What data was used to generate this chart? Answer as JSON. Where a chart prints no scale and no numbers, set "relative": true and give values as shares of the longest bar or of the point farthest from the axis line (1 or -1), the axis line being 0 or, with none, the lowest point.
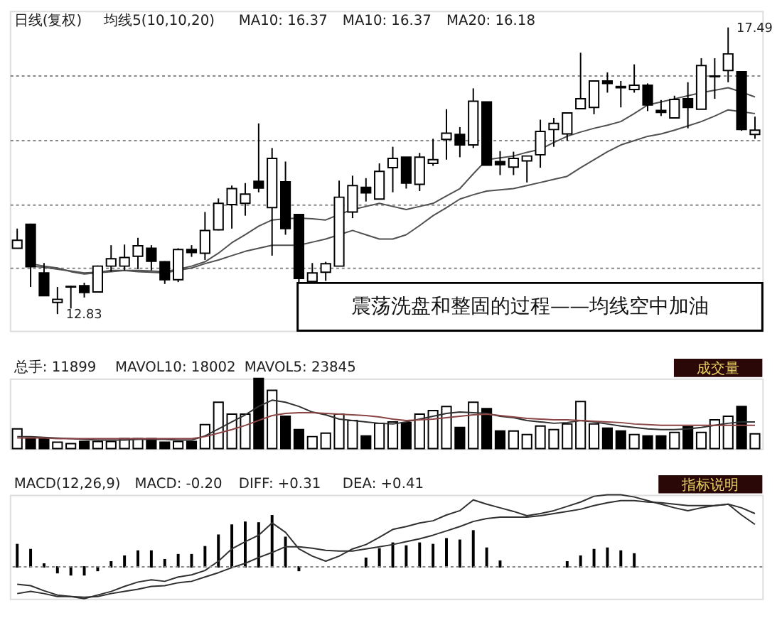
{
  "chart_data": [
    {
      "type": "candlestick",
      "categories": [
        null,
        null,
        null,
        null,
        null,
        null,
        null,
        null,
        null,
        null,
        null,
        null,
        null,
        null,
        null,
        null,
        null,
        null,
        null,
        null,
        null,
        null,
        null,
        null,
        null,
        null,
        null,
        null,
        null,
        null,
        null,
        null,
        null,
        null,
        null,
        null,
        null,
        null,
        null,
        null,
        null,
        null,
        null,
        null,
        null,
        null,
        null,
        null,
        null,
        null,
        null,
        null,
        null,
        null,
        null,
        null
      ],
      "ohlc": [
        [
          13.9,
          14.22,
          13.9,
          14.03
        ],
        [
          14.29,
          14.3,
          13.27,
          13.6
        ],
        [
          13.5,
          13.66,
          13.13,
          13.13
        ],
        [
          13.02,
          13.27,
          12.83,
          13.07
        ],
        [
          13.27,
          13.29,
          12.92,
          13.28
        ],
        [
          13.29,
          13.34,
          13.1,
          13.18
        ],
        [
          13.19,
          13.62,
          13.19,
          13.61
        ],
        [
          13.61,
          13.95,
          13.52,
          13.73
        ],
        [
          13.61,
          13.96,
          13.54,
          13.75
        ],
        [
          13.77,
          14.07,
          13.56,
          13.94
        ],
        [
          13.9,
          13.95,
          13.54,
          13.69
        ],
        [
          13.68,
          13.69,
          13.32,
          13.39
        ],
        [
          13.39,
          13.9,
          13.35,
          13.88
        ],
        [
          13.88,
          13.95,
          13.76,
          13.83
        ],
        [
          13.82,
          14.49,
          13.71,
          14.19
        ],
        [
          14.2,
          14.71,
          14.19,
          14.63
        ],
        [
          14.61,
          14.92,
          14.22,
          14.87
        ],
        [
          14.63,
          14.96,
          14.43,
          14.78
        ],
        [
          14.99,
          15.93,
          14.81,
          14.88
        ],
        [
          14.56,
          15.53,
          13.78,
          15.36
        ],
        [
          14.98,
          15.31,
          14.12,
          14.22
        ],
        [
          14.45,
          14.45,
          13.35,
          13.41
        ],
        [
          13.36,
          13.66,
          13.34,
          13.5
        ],
        [
          13.51,
          13.68,
          13.37,
          13.65
        ],
        [
          13.61,
          15.0,
          13.61,
          14.73
        ],
        [
          14.49,
          15.08,
          14.39,
          14.92
        ],
        [
          14.89,
          15.04,
          14.66,
          14.8
        ],
        [
          14.7,
          15.28,
          14.7,
          15.15
        ],
        [
          15.21,
          15.55,
          14.81,
          15.36
        ],
        [
          15.38,
          15.38,
          14.87,
          14.96
        ],
        [
          14.94,
          15.45,
          14.83,
          15.38
        ],
        [
          15.28,
          15.68,
          15.24,
          15.34
        ],
        [
          15.67,
          16.16,
          15.34,
          15.77
        ],
        [
          15.75,
          15.87,
          15.38,
          15.58
        ],
        [
          15.58,
          16.5,
          15.53,
          16.29
        ],
        [
          16.28,
          16.28,
          15.25,
          15.25
        ],
        [
          15.31,
          15.48,
          15.09,
          15.26
        ],
        [
          15.22,
          15.47,
          15.09,
          15.36
        ],
        [
          15.32,
          15.4,
          14.97,
          15.4
        ],
        [
          15.42,
          15.99,
          15.21,
          15.8
        ],
        [
          15.83,
          16.02,
          15.55,
          15.93
        ],
        [
          15.76,
          16.1,
          15.65,
          16.1
        ],
        [
          16.17,
          17.08,
          16.17,
          16.33
        ],
        [
          16.19,
          16.62,
          16.08,
          16.62
        ],
        [
          16.62,
          16.76,
          16.43,
          16.58
        ],
        [
          16.53,
          16.62,
          16.19,
          16.51
        ],
        [
          16.48,
          16.89,
          16.43,
          16.55
        ],
        [
          16.55,
          16.58,
          16.13,
          16.23
        ],
        [
          16.14,
          16.31,
          16.05,
          16.11
        ],
        [
          16.02,
          16.38,
          16.02,
          16.32
        ],
        [
          16.33,
          16.6,
          15.85,
          16.19
        ],
        [
          16.16,
          16.99,
          16.16,
          16.87
        ],
        [
          16.69,
          16.99,
          16.33,
          16.7
        ],
        [
          16.79,
          17.49,
          16.6,
          17.06
        ],
        [
          16.77,
          16.77,
          15.81,
          15.83
        ],
        [
          15.75,
          16.04,
          15.68,
          15.82
        ]
      ],
      "series": [
        {
          "type": "line",
          "color": "#505050",
          "values": [
            null,
            13.65,
            13.61,
            13.58,
            13.52,
            13.48,
            13.5,
            13.52,
            13.54,
            13.54,
            13.53,
            13.52,
            13.56,
            13.61,
            13.68,
            13.82,
            13.99,
            14.12,
            14.26,
            14.36,
            14.38,
            14.39,
            14.38,
            14.36,
            14.45,
            14.53,
            14.58,
            14.63,
            14.58,
            14.53,
            14.58,
            14.63,
            14.75,
            14.87,
            15.11,
            15.34,
            15.37,
            15.4,
            15.46,
            15.51,
            15.62,
            15.72,
            15.79,
            15.85,
            15.9,
            15.96,
            16.09,
            16.23,
            16.28,
            16.33,
            16.38,
            16.43,
            16.47,
            16.51,
            16.44,
            16.36
          ]
        },
        {
          "type": "line",
          "color": "#505050",
          "values": [
            null,
            13.61,
            13.59,
            13.56,
            13.53,
            13.5,
            13.51,
            13.54,
            13.54,
            13.52,
            13.51,
            13.5,
            13.54,
            13.58,
            13.65,
            13.71,
            13.78,
            13.85,
            13.9,
            13.95,
            13.95,
            13.95,
            14.0,
            14.05,
            14.12,
            14.19,
            14.12,
            14.05,
            14.05,
            14.12,
            14.27,
            14.43,
            14.56,
            14.7,
            14.77,
            14.83,
            14.85,
            14.87,
            14.92,
            14.97,
            15.02,
            15.07,
            15.21,
            15.34,
            15.47,
            15.58,
            15.65,
            15.72,
            15.76,
            15.82,
            15.89,
            15.96,
            16.05,
            16.15,
            16.12,
            16.09
          ]
        }
      ],
      "ylim": [
        12.56,
        17.76
      ],
      "yticks": [
        {
          "value": 13.59,
          "label": null
        },
        {
          "value": 14.62,
          "label": null
        },
        {
          "value": 15.67,
          "label": null
        },
        {
          "value": 16.7,
          "label": null
        }
      ],
      "grid": "y",
      "tick_labels": false,
      "annotations": [
        "17.49",
        "12.83",
        "日线(复权)",
        "均线5(10,10,20)",
        "MA10: 16.37",
        "MA10: 16.37",
        "MA20: 16.18",
        "震荡洗盘和整固的过程——均线空中加油"
      ]
    },
    {
      "type": "bar",
      "relative": true,
      "categories": [
        null,
        null,
        null,
        null,
        null,
        null,
        null,
        null,
        null,
        null,
        null,
        null,
        null,
        null,
        null,
        null,
        null,
        null,
        null,
        null,
        null,
        null,
        null,
        null,
        null,
        null,
        null,
        null,
        null,
        null,
        null,
        null,
        null,
        null,
        null,
        null,
        null,
        null,
        null,
        null,
        null,
        null,
        null,
        null,
        null,
        null,
        null,
        null,
        null,
        null,
        null,
        null,
        null,
        null,
        null,
        null
      ],
      "series": [
        {
          "type": "bar",
          "values": [
            0.28,
            0.15,
            0.14,
            0.09,
            0.07,
            0.1,
            0.1,
            0.1,
            0.14,
            0.14,
            0.14,
            0.09,
            0.1,
            0.1,
            0.34,
            0.66,
            0.49,
            0.49,
            1,
            0.83,
            0.46,
            0.27,
            0.17,
            0.22,
            0.49,
            0.4,
            0.18,
            0.36,
            0.38,
            0.37,
            0.49,
            0.54,
            0.6,
            0.3,
            0.66,
            0.57,
            0.25,
            0.25,
            0.2,
            0.32,
            0.27,
            0.35,
            0.67,
            0.35,
            0.29,
            0.25,
            0.2,
            0.18,
            0.18,
            0.23,
            0.31,
            0.23,
            0.41,
            0.46,
            0.6,
            0.21
          ],
          "colors": [
            "#ffffff",
            "#000000",
            "#000000",
            "#ffffff",
            "#ffffff",
            "#000000",
            "#ffffff",
            "#ffffff",
            "#ffffff",
            "#ffffff",
            "#000000",
            "#000000",
            "#ffffff",
            "#000000",
            "#ffffff",
            "#ffffff",
            "#ffffff",
            "#ffffff",
            "#000000",
            "#ffffff",
            "#000000",
            "#000000",
            "#ffffff",
            "#ffffff",
            "#ffffff",
            "#ffffff",
            "#000000",
            "#ffffff",
            "#ffffff",
            "#000000",
            "#ffffff",
            "#ffffff",
            "#ffffff",
            "#000000",
            "#ffffff",
            "#000000",
            "#000000",
            "#ffffff",
            "#ffffff",
            "#ffffff",
            "#ffffff",
            "#ffffff",
            "#ffffff",
            "#ffffff",
            "#000000",
            "#000000",
            "#ffffff",
            "#000000",
            "#000000",
            "#ffffff",
            "#000000",
            "#ffffff",
            "#ffffff",
            "#ffffff",
            "#000000",
            "#ffffff"
          ]
        },
        {
          "type": "line",
          "color": "#303030",
          "values": [
            0.17,
            0.17,
            0.16,
            0.15,
            0.14,
            0.13,
            0.12,
            0.12,
            0.12,
            0.13,
            0.13,
            0.13,
            0.12,
            0.12,
            0.18,
            0.28,
            0.38,
            0.48,
            0.6,
            0.69,
            0.66,
            0.6,
            0.52,
            0.48,
            0.42,
            0.4,
            0.38,
            0.36,
            0.35,
            0.38,
            0.42,
            0.46,
            0.5,
            0.52,
            0.51,
            0.5,
            0.46,
            0.44,
            0.4,
            0.38,
            0.36,
            0.37,
            0.4,
            0.38,
            0.35,
            0.32,
            0.3,
            0.28,
            0.27,
            0.27,
            0.28,
            0.3,
            0.33,
            0.36,
            0.38,
            0.38
          ]
        },
        {
          "type": "line",
          "color": "#8b4545",
          "values": [
            0.15,
            0.15,
            0.15,
            0.14,
            0.14,
            0.14,
            0.14,
            0.14,
            0.14,
            0.14,
            0.14,
            0.14,
            0.14,
            0.14,
            0.17,
            0.22,
            0.27,
            0.33,
            0.4,
            0.47,
            0.5,
            0.51,
            0.51,
            0.5,
            0.49,
            0.48,
            0.47,
            0.45,
            0.42,
            0.4,
            0.41,
            0.42,
            0.44,
            0.46,
            0.48,
            0.49,
            0.47,
            0.45,
            0.43,
            0.42,
            0.41,
            0.41,
            0.4,
            0.39,
            0.38,
            0.37,
            0.35,
            0.34,
            0.33,
            0.33,
            0.33,
            0.33,
            0.33,
            0.33,
            0.33,
            0.33
          ]
        }
      ],
      "annotations": [
        "总手: 11899",
        "MAVOL10: 18002",
        "MAVOL5: 23845",
        "成交量"
      ]
    },
    {
      "type": "bar",
      "relative": true,
      "categories": [
        null,
        null,
        null,
        null,
        null,
        null,
        null,
        null,
        null,
        null,
        null,
        null,
        null,
        null,
        null,
        null,
        null,
        null,
        null,
        null,
        null,
        null,
        null,
        null,
        null,
        null,
        null,
        null,
        null,
        null,
        null,
        null,
        null,
        null,
        null,
        null,
        null,
        null,
        null,
        null,
        null,
        null,
        null,
        null,
        null,
        null,
        null,
        null,
        null,
        null,
        null,
        null,
        null,
        null,
        null,
        null
      ],
      "series": [
        {
          "type": "bar",
          "color": "#000000",
          "values": [
            0.31,
            0.24,
            0.04,
            -0.08,
            -0.11,
            -0.11,
            -0.05,
            0.07,
            0.15,
            0.22,
            0.22,
            0.1,
            0.17,
            0.17,
            0.28,
            0.44,
            0.58,
            0.62,
            0.61,
            0.71,
            0.41,
            -0.05,
            null,
            null,
            null,
            null,
            0.12,
            0.25,
            0.33,
            0.29,
            0.33,
            0.31,
            0.39,
            0.37,
            0.5,
            0.26,
            0.08,
            null,
            null,
            null,
            null,
            0.07,
            0.15,
            0.24,
            0.26,
            0.22,
            0.18,
            null,
            null,
            null,
            null,
            null,
            null,
            null,
            null,
            null
          ]
        },
        {
          "type": "line",
          "color": "#303030",
          "values": [
            -0.24,
            -0.26,
            -0.33,
            -0.39,
            -0.41,
            -0.44,
            -0.39,
            -0.34,
            -0.27,
            -0.21,
            -0.18,
            -0.2,
            -0.14,
            -0.11,
            -0.05,
            0.08,
            0.25,
            0.35,
            0.44,
            0.61,
            0.48,
            0.25,
            0.15,
            0.08,
            0.15,
            0.25,
            0.31,
            0.41,
            0.52,
            0.56,
            0.61,
            0.64,
            0.72,
            0.78,
            0.93,
            0.87,
            0.82,
            0.77,
            0.71,
            0.74,
            0.78,
            0.84,
            0.9,
            0.98,
            1.0,
            1.0,
            0.97,
            0.92,
            0.87,
            0.82,
            0.78,
            0.82,
            0.85,
            0.87,
            0.72,
            0.59
          ]
        },
        {
          "type": "line",
          "color": "#303030",
          "values": [
            -0.37,
            -0.34,
            -0.37,
            -0.41,
            -0.41,
            -0.42,
            -0.41,
            -0.37,
            -0.34,
            -0.31,
            -0.27,
            -0.26,
            -0.22,
            -0.2,
            -0.14,
            -0.08,
            -0.01,
            0.05,
            0.13,
            0.2,
            0.28,
            0.28,
            0.26,
            0.23,
            0.22,
            0.22,
            0.25,
            0.28,
            0.31,
            0.35,
            0.39,
            0.44,
            0.5,
            0.56,
            0.63,
            0.67,
            0.69,
            0.69,
            0.69,
            0.71,
            0.74,
            0.77,
            0.8,
            0.85,
            0.89,
            0.92,
            0.92,
            0.9,
            0.89,
            0.87,
            0.85,
            0.85,
            0.85,
            0.87,
            0.82,
            0.74
          ]
        }
      ],
      "ref_lines": [
        {
          "axis": "y",
          "value": 0,
          "line_style": "dotted"
        }
      ],
      "annotations": [
        "MACD(12,26,9)",
        "MACD: -0.20",
        "DIFF: +0.31",
        "DEA: +0.41",
        "指标说明"
      ]
    }
  ]
}
